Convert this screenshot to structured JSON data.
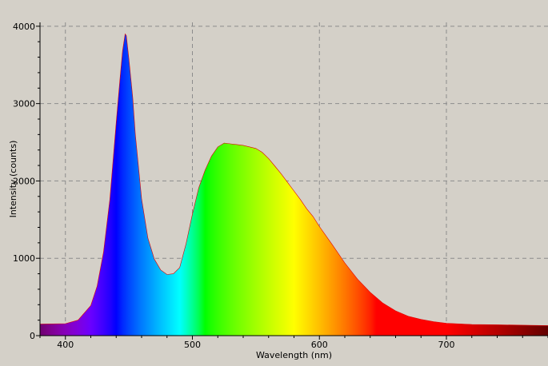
{
  "chart_data": {
    "type": "area",
    "title": "",
    "xlabel": "Wavelength (nm)",
    "ylabel": "Intensity (counts)",
    "xlim": [
      380,
      780
    ],
    "ylim": [
      0,
      4050
    ],
    "x_ticks": [
      400,
      500,
      600,
      700
    ],
    "y_ticks": [
      0,
      1000,
      2000,
      3000,
      4000
    ],
    "grid": true,
    "legend": "none",
    "fill": "visible-spectrum-gradient",
    "series": [
      {
        "x": [
          380,
          400,
          410,
          420,
          425,
          430,
          435,
          440,
          443,
          445,
          447,
          448,
          450,
          453,
          455,
          460,
          465,
          470,
          475,
          480,
          485,
          490,
          495,
          500,
          505,
          510,
          515,
          520,
          525,
          530,
          535,
          540,
          545,
          550,
          555,
          560,
          565,
          570,
          575,
          580,
          585,
          590,
          595,
          600,
          610,
          620,
          630,
          640,
          650,
          660,
          670,
          680,
          690,
          700,
          720,
          740,
          760,
          780
        ],
        "values": [
          150,
          155,
          200,
          390,
          640,
          1080,
          1760,
          2760,
          3320,
          3680,
          3900,
          3880,
          3580,
          3080,
          2610,
          1770,
          1260,
          990,
          850,
          790,
          800,
          880,
          1190,
          1570,
          1910,
          2140,
          2320,
          2440,
          2490,
          2480,
          2470,
          2460,
          2440,
          2420,
          2370,
          2290,
          2190,
          2090,
          1980,
          1870,
          1760,
          1640,
          1540,
          1410,
          1180,
          940,
          730,
          560,
          420,
          320,
          250,
          210,
          180,
          160,
          145,
          140,
          135,
          130
        ]
      }
    ]
  }
}
